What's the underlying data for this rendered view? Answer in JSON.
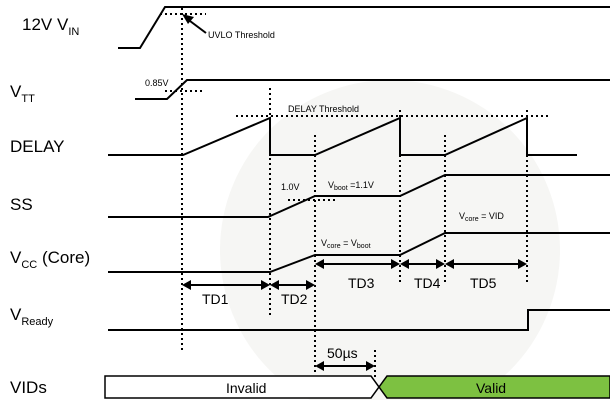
{
  "signals": {
    "vin": {
      "main": "12V V",
      "sub": "IN"
    },
    "vtt": {
      "main": "V",
      "sub": "TT"
    },
    "delay": "DELAY",
    "ss": "SS",
    "vcc": {
      "main": "V",
      "sub": "CC",
      "rest": " (Core)"
    },
    "vready": {
      "main": "V",
      "sub": "Ready"
    },
    "vids": "VIDs"
  },
  "annotations": {
    "uvlo": "UVLO Threshold",
    "v085": "0.85V",
    "delay_threshold": "DELAY Threshold",
    "v10": "1.0V",
    "vboot": {
      "pre": "V",
      "sub": "boot",
      "post": " =1.1V"
    },
    "vcore_vboot": {
      "pre": "V",
      "sub1": "core",
      "mid": " = V",
      "sub2": "boot"
    },
    "vcore_vid": {
      "pre": "V",
      "sub": "core",
      "post": " = VID"
    }
  },
  "intervals": [
    "TD1",
    "TD2",
    "TD3",
    "TD4",
    "TD5"
  ],
  "delay_50": "50µs",
  "vids_states": {
    "invalid": "Invalid",
    "valid": "Valid"
  },
  "colors": {
    "valid_fill": "#7dc141",
    "line": "#000000",
    "watermark": "#f4f4f2"
  }
}
